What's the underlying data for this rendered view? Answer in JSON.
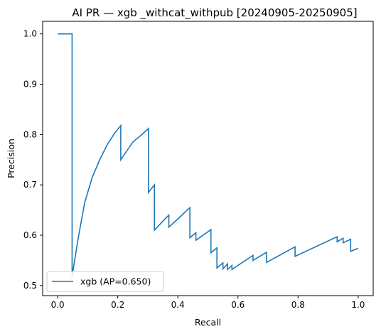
{
  "chart_data": {
    "type": "line",
    "title": "AI PR — xgb _withcat_withpub [20240905-20250905]",
    "xlabel": "Recall",
    "ylabel": "Precision",
    "xlim": [
      -0.05,
      1.05
    ],
    "ylim": [
      0.48,
      1.025
    ],
    "xticks": [
      0.0,
      0.2,
      0.4,
      0.6,
      0.8,
      1.0
    ],
    "xtick_labels": [
      "0.0",
      "0.2",
      "0.4",
      "0.6",
      "0.8",
      "1.0"
    ],
    "yticks": [
      0.5,
      0.6,
      0.7,
      0.8,
      0.9,
      1.0
    ],
    "ytick_labels": [
      "0.5",
      "0.6",
      "0.7",
      "0.8",
      "0.9",
      "1.0"
    ],
    "legend_position": "lower-left",
    "series": [
      {
        "name": "xgb (AP=0.650)",
        "color": "#1f77b4",
        "x": [
          0.0,
          0.048,
          0.048,
          0.055,
          0.07,
          0.09,
          0.115,
          0.14,
          0.165,
          0.19,
          0.21,
          0.21,
          0.25,
          0.28,
          0.302,
          0.302,
          0.322,
          0.322,
          0.35,
          0.37,
          0.37,
          0.41,
          0.44,
          0.44,
          0.46,
          0.46,
          0.51,
          0.51,
          0.53,
          0.53,
          0.55,
          0.55,
          0.565,
          0.565,
          0.58,
          0.58,
          0.65,
          0.65,
          0.695,
          0.695,
          0.79,
          0.79,
          0.93,
          0.93,
          0.95,
          0.95,
          0.975,
          0.975,
          1.0
        ],
        "y": [
          1.0,
          1.0,
          0.518,
          0.545,
          0.6,
          0.665,
          0.715,
          0.75,
          0.78,
          0.803,
          0.818,
          0.75,
          0.785,
          0.8,
          0.812,
          0.685,
          0.7,
          0.61,
          0.628,
          0.64,
          0.616,
          0.638,
          0.655,
          0.595,
          0.605,
          0.59,
          0.611,
          0.565,
          0.575,
          0.535,
          0.545,
          0.533,
          0.543,
          0.532,
          0.54,
          0.532,
          0.56,
          0.55,
          0.566,
          0.546,
          0.577,
          0.558,
          0.597,
          0.587,
          0.594,
          0.585,
          0.592,
          0.568,
          0.574
        ]
      }
    ]
  }
}
